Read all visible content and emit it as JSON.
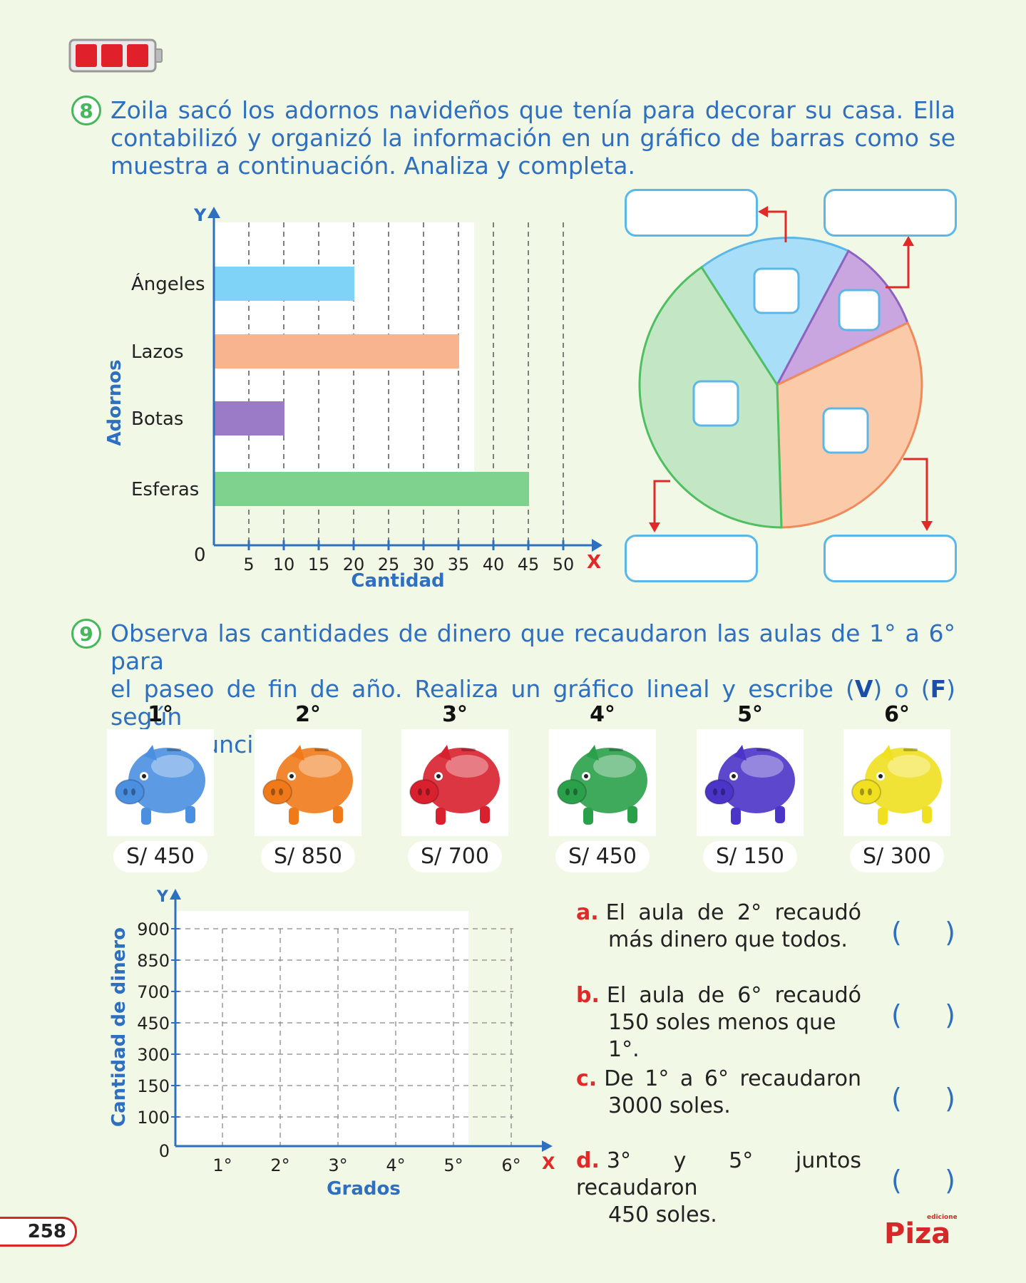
{
  "q8": {
    "number": "8",
    "text_line1": "Zoila sacó los adornos navideños que tenía para decorar su casa. Ella",
    "text_line2": "contabilizó y organizó la información en un gráfico de barras como se",
    "text_line3": "muestra a continuación. Analiza y completa."
  },
  "chart_data": [
    {
      "type": "bar",
      "orientation": "horizontal",
      "categories": [
        "Ángeles",
        "Lazos",
        "Botas",
        "Esferas"
      ],
      "values": [
        20,
        35,
        10,
        45
      ],
      "colors": [
        "#7fd3f7",
        "#f8b48f",
        "#9b7bc8",
        "#7fd28e"
      ],
      "xlabel": "Cantidad",
      "ylabel": "Adornos",
      "x_axis_letter": "X",
      "y_axis_letter": "Y",
      "origin_label": "0",
      "xticks": [
        5,
        10,
        15,
        20,
        25,
        30,
        35,
        40,
        45,
        50
      ],
      "xlim": [
        0,
        50
      ],
      "grid": "vertical dashed"
    },
    {
      "type": "line",
      "status": "empty grid to complete",
      "categories": [
        "1°",
        "2°",
        "3°",
        "4°",
        "5°",
        "6°"
      ],
      "yticks": [
        "900",
        "850",
        "700",
        "450",
        "300",
        "150",
        "100",
        "0"
      ],
      "xlabel": "Grados",
      "ylabel": "Cantidad de dinero",
      "x_axis_letter": "X",
      "y_axis_letter": "Y"
    }
  ],
  "pie": {
    "slices": [
      {
        "name": "blue",
        "color": "#a8def8",
        "stroke": "#5bb7e8"
      },
      {
        "name": "purple",
        "color": "#c9a6e0",
        "stroke": "#8d63bd"
      },
      {
        "name": "orange",
        "color": "#fbcaa8",
        "stroke": "#f08a5d"
      },
      {
        "name": "green",
        "color": "#c3e6c4",
        "stroke": "#4fbf62"
      }
    ]
  },
  "q9": {
    "number": "9",
    "text_line1_a": "Observa las cantidades de dinero que recaudaron las aulas de 1° a 6° para",
    "text_line2_pre": "el paseo de fin de año. Realiza un gráfico lineal y escribe (",
    "text_V": "V",
    "text_mid": ") o (",
    "text_F": "F",
    "text_line2_post": ") según",
    "text_line3": "cada enunciado.",
    "grades": [
      {
        "label": "1°",
        "price": "S/ 450",
        "color": "#4a8fe0"
      },
      {
        "label": "2°",
        "price": "S/ 850",
        "color": "#f07a1a"
      },
      {
        "label": "3°",
        "price": "S/ 700",
        "color": "#d8202e"
      },
      {
        "label": "4°",
        "price": "S/ 450",
        "color": "#2aa04a"
      },
      {
        "label": "5°",
        "price": "S/ 150",
        "color": "#4b34c8"
      },
      {
        "label": "6°",
        "price": "S/ 300",
        "color": "#f0e020"
      }
    ],
    "statements": [
      {
        "letter": "a.",
        "line1": "El aula de 2° recaudó",
        "line2": "más dinero que todos."
      },
      {
        "letter": "b.",
        "line1": "El aula de 6° recaudó",
        "line2": "150 soles menos que 1°."
      },
      {
        "letter": "c.",
        "line1": "De 1° a 6° recaudaron",
        "line2": "3000 soles."
      },
      {
        "letter": "d.",
        "line1": "3° y 5° juntos recaudaron",
        "line2": "450 soles."
      }
    ],
    "paren_open": "(",
    "paren_close": ")"
  },
  "footer": {
    "page_number": "258",
    "logo_small": "ediciones",
    "logo_text": "Piza"
  }
}
